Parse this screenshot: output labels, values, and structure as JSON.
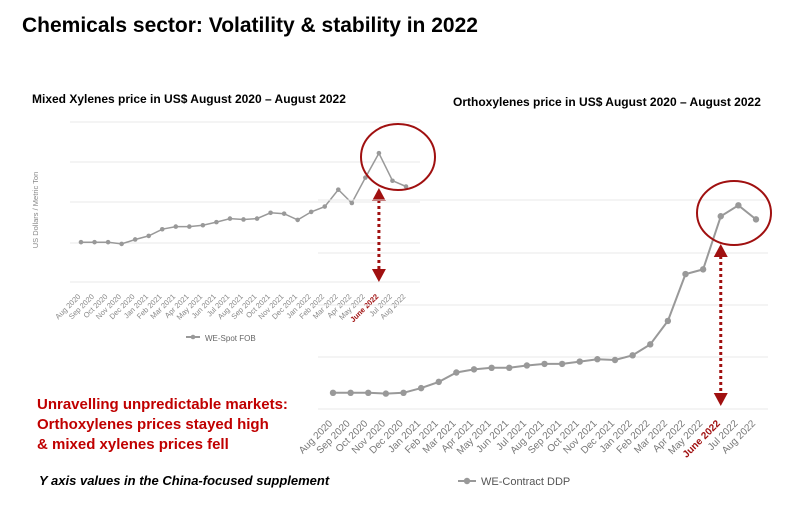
{
  "header": {
    "title": "Chemicals sector: Volatility & stability in 2022"
  },
  "notes": {
    "line1": "Unravelling unpredictable markets:",
    "line2": "Orthoxylenes prices stayed high",
    "line3": "& mixed xylenes prices fell",
    "footnote": "Y axis values in the China-focused supplement"
  },
  "colors": {
    "series": "#999999",
    "highlight": "#a01010",
    "note": "#c00000",
    "grid": "#e8e8e8"
  },
  "chart_data": [
    {
      "type": "line",
      "title": "Mixed Xylenes price in US$ August 2020 – August 2022",
      "ylabel": "US Dollars / Metric Ton",
      "highlight_label": "June 2022",
      "x": [
        "Aug 2020",
        "Sep 2020",
        "Oct 2020",
        "Nov 2020",
        "Dec 2020",
        "Jan 2021",
        "Feb 2021",
        "Mar 2021",
        "Apr 2021",
        "May 2021",
        "Jun 2021",
        "Jul 2021",
        "Aug 2021",
        "Sep 2021",
        "Oct 2021",
        "Nov 2021",
        "Dec 2021",
        "Jan 2022",
        "Feb 2022",
        "Mar 2022",
        "Apr 2022",
        "May 2022",
        "June 2022",
        "Jul 2022",
        "Aug 2022"
      ],
      "series": [
        {
          "name": "WE-Spot FOB",
          "values": [
            0.3,
            0.3,
            0.3,
            0.26,
            0.36,
            0.44,
            0.59,
            0.65,
            0.65,
            0.68,
            0.75,
            0.83,
            0.81,
            0.83,
            0.96,
            0.94,
            0.8,
            0.98,
            1.1,
            1.48,
            1.18,
            1.75,
            2.3,
            1.68,
            1.55
          ]
        }
      ],
      "ylim": [
        -1.0,
        3.0
      ],
      "grid": true,
      "legend": "bottom"
    },
    {
      "type": "line",
      "title": "Orthoxylenes price in US$ August 2020 – August 2022",
      "highlight_label": "June 2022",
      "x": [
        "Aug 2020",
        "Sep 2020",
        "Oct 2020",
        "Nov 2020",
        "Dec 2020",
        "Jan 2021",
        "Feb 2021",
        "Mar 2021",
        "Apr 2021",
        "May 2021",
        "Jun 2021",
        "Jul 2021",
        "Aug 2021",
        "Sep 2021",
        "Oct 2021",
        "Nov 2021",
        "Dec 2021",
        "Jan 2022",
        "Feb 2022",
        "Mar 2022",
        "Apr 2022",
        "May 2022",
        "June 2022",
        "Jul 2022",
        "Aug 2022"
      ],
      "series": [
        {
          "name": "WE-Contract DDP",
          "values": [
            1.1,
            1.1,
            1.1,
            1.05,
            1.1,
            1.4,
            1.8,
            2.4,
            2.6,
            2.7,
            2.7,
            2.85,
            2.95,
            2.95,
            3.1,
            3.25,
            3.2,
            3.5,
            4.2,
            5.7,
            8.7,
            9.0,
            12.4,
            13.1,
            12.2
          ]
        }
      ],
      "ylim": [
        0,
        16
      ],
      "grid": true,
      "legend": "bottom"
    }
  ]
}
